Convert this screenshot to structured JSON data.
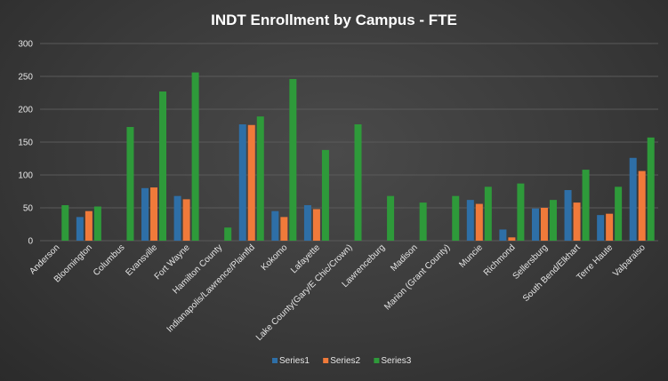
{
  "chart_data": {
    "type": "bar",
    "title": "INDT Enrollment by Campus - FTE",
    "xlabel": "",
    "ylabel": "",
    "ylim": [
      0,
      300
    ],
    "yticks": [
      0,
      50,
      100,
      150,
      200,
      250,
      300
    ],
    "grid": true,
    "legend": "bottom",
    "categories": [
      "Anderson",
      "Bloomington",
      "Columbus",
      "Evansville",
      "Fort Wayne",
      "Hamilton County",
      "Indianapolis/Lawrence/Plainfld",
      "Kokomo",
      "Lafayette",
      "Lake County(Gary/E Chic/Crown)",
      "Lawrenceburg",
      "Madison",
      "Marion (Grant County)",
      "Muncie",
      "Richmond",
      "Sellersburg",
      "South Bend/Elkhart",
      "Terre Haute",
      "Valparaiso"
    ],
    "series": [
      {
        "name": "Series1",
        "color": "#2e6fa7",
        "values": [
          0,
          36,
          0,
          80,
          68,
          0,
          177,
          45,
          54,
          0,
          0,
          0,
          0,
          62,
          17,
          49,
          77,
          39,
          126
        ]
      },
      {
        "name": "Series2",
        "color": "#f07a3a",
        "values": [
          0,
          45,
          0,
          81,
          63,
          0,
          176,
          36,
          48,
          0,
          0,
          0,
          0,
          56,
          5,
          50,
          58,
          41,
          106
        ]
      },
      {
        "name": "Series3",
        "color": "#2e9a3a",
        "values": [
          54,
          52,
          173,
          227,
          256,
          20,
          189,
          246,
          138,
          177,
          68,
          58,
          68,
          82,
          87,
          62,
          108,
          82,
          157
        ]
      }
    ]
  }
}
